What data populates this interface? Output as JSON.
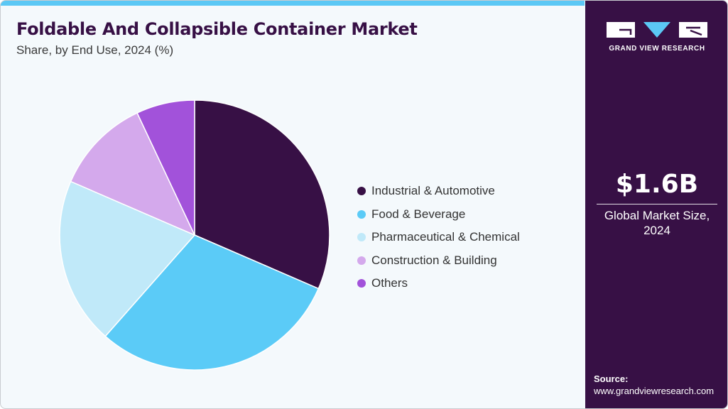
{
  "header": {
    "title": "Foldable And Collapsible Container Market",
    "subtitle": "Share, by End Use, 2024 (%)"
  },
  "chart_data": {
    "type": "pie",
    "title": "Foldable And Collapsible Container Market",
    "subtitle": "Share, by End Use, 2024 (%)",
    "unit": "%",
    "legend_position": "right",
    "start_angle_deg": 0,
    "direction": "clockwise",
    "categories": [
      "Industrial & Automotive",
      "Food & Beverage",
      "Pharmaceutical & Chemical",
      "Construction & Building",
      "Others"
    ],
    "values": [
      31.5,
      30.0,
      20.0,
      11.5,
      7.0
    ],
    "colors": [
      "#371045",
      "#5bcbf7",
      "#c0e9f9",
      "#d4a9ec",
      "#a252da"
    ]
  },
  "side_panel": {
    "logo_text": "GRAND VIEW RESEARCH",
    "market_value": "$1.6B",
    "market_caption": "Global Market Size, 2024",
    "source_label": "Source:",
    "source_url": "www.grandviewresearch.com",
    "background": "#371045"
  },
  "accent_color": "#5bc8f5"
}
